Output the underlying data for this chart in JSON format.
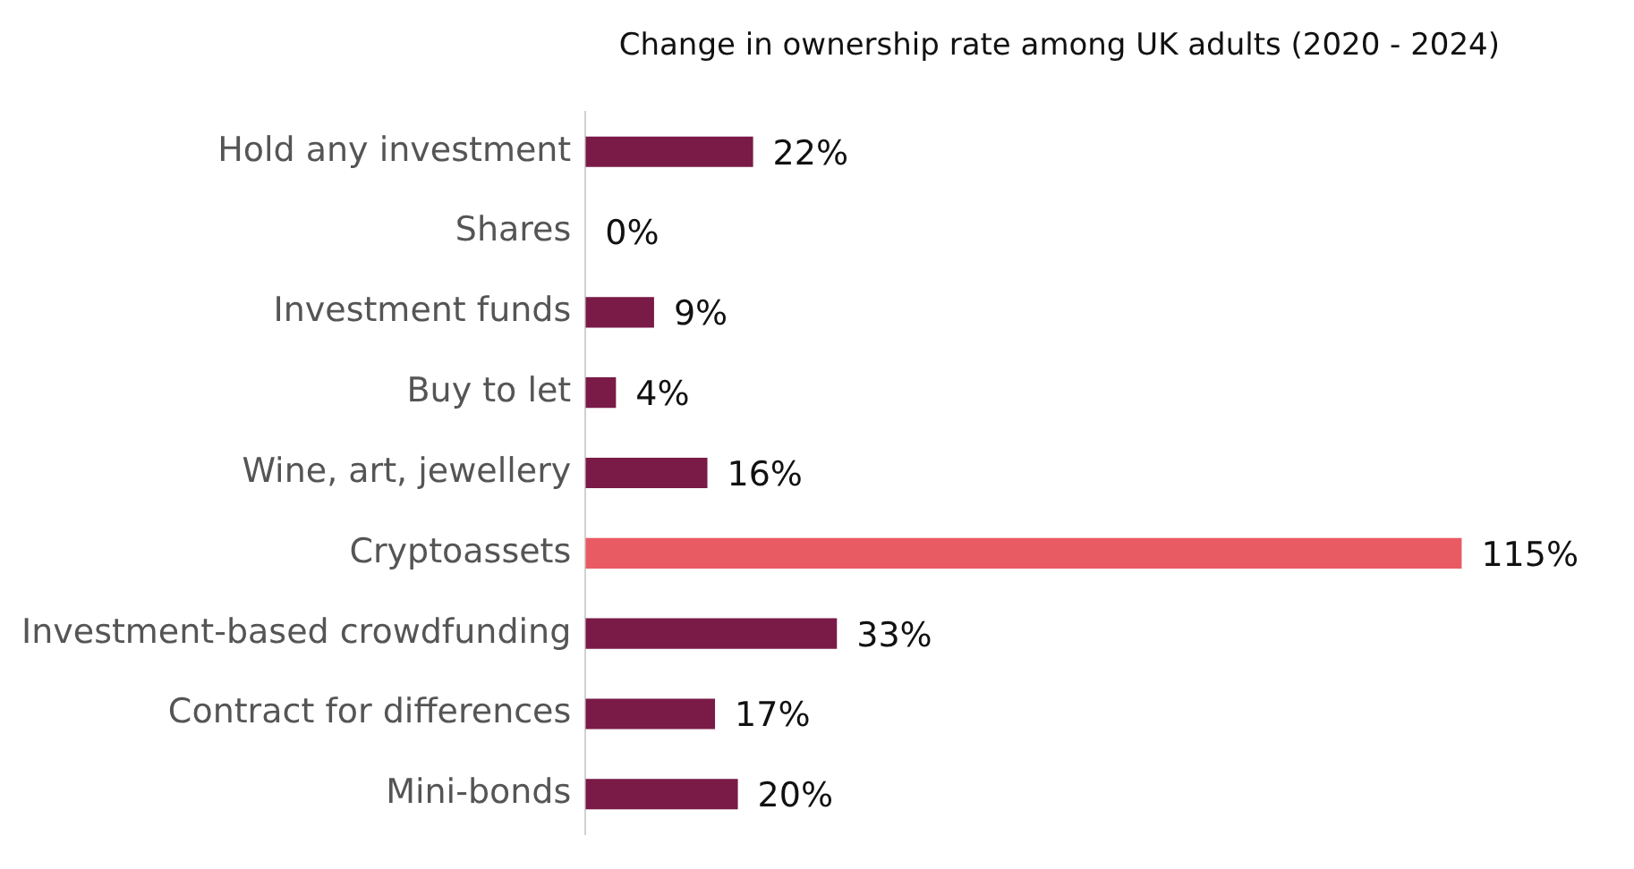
{
  "chart_data": {
    "type": "bar",
    "orientation": "horizontal",
    "title": "Change in ownership rate among UK adults (2020 - 2024)",
    "categories": [
      "Hold any investment",
      "Shares",
      "Investment funds",
      "Buy to let",
      "Wine, art, jewellery",
      "Cryptoassets",
      "Investment-based crowdfunding",
      "Contract for differences",
      "Mini-bonds"
    ],
    "values": [
      22,
      0,
      9,
      4,
      16,
      115,
      33,
      17,
      20
    ],
    "colors": [
      "#7a1a47",
      "#7a1a47",
      "#7a1a47",
      "#7a1a47",
      "#7a1a47",
      "#e95b63",
      "#7a1a47",
      "#7a1a47",
      "#7a1a47"
    ],
    "value_labels": [
      "22%",
      "0%",
      "9%",
      "4%",
      "16%",
      "115%",
      "33%",
      "17%",
      "20%"
    ]
  }
}
